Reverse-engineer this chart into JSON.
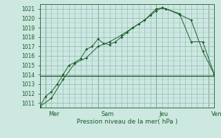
{
  "xlabel": "Pression niveau de la mer( hPa )",
  "bg_color": "#cce8e0",
  "grid_color": "#99bbbb",
  "line_color": "#1a5c2a",
  "ylim": [
    1010.5,
    1021.5
  ],
  "yticks": [
    1011,
    1012,
    1013,
    1014,
    1015,
    1016,
    1017,
    1018,
    1019,
    1020,
    1021
  ],
  "xlim": [
    0,
    9.0
  ],
  "xday_ticks": [
    0.3,
    3.0,
    6.0,
    8.7
  ],
  "xday_labels": [
    "Mer",
    "Sam",
    "Jeu",
    "Ven"
  ],
  "xvlines": [
    0.3,
    3.0,
    6.0,
    8.7
  ],
  "line1_x": [
    0.0,
    0.3,
    0.6,
    0.9,
    1.2,
    1.5,
    1.8,
    2.1,
    2.4,
    2.7,
    3.0,
    3.3,
    3.6,
    3.9,
    4.2,
    4.5,
    4.8,
    5.1,
    5.4,
    5.7,
    6.0,
    6.3,
    6.5,
    7.2,
    7.8,
    8.4,
    9.0
  ],
  "line1_y": [
    1010.6,
    1011.7,
    1012.2,
    1013.0,
    1014.0,
    1015.0,
    1015.3,
    1015.7,
    1016.7,
    1017.0,
    1017.8,
    1017.3,
    1017.2,
    1017.5,
    1018.0,
    1018.5,
    1019.0,
    1019.4,
    1019.8,
    1020.3,
    1020.8,
    1021.1,
    1021.0,
    1020.5,
    1017.5,
    1017.5,
    1014.0
  ],
  "line2_x": [
    0.0,
    0.6,
    1.2,
    1.8,
    2.4,
    3.0,
    3.6,
    4.2,
    4.8,
    5.4,
    6.0,
    6.3,
    6.5,
    7.2,
    7.8,
    8.4,
    9.0
  ],
  "line2_y": [
    1010.6,
    1011.5,
    1013.5,
    1015.2,
    1015.8,
    1017.0,
    1017.5,
    1018.2,
    1019.0,
    1019.8,
    1021.0,
    1021.1,
    1021.0,
    1020.4,
    1019.8,
    1016.5,
    1014.0
  ],
  "line3_x": [
    0.0,
    9.0
  ],
  "line3_y": [
    1013.9,
    1013.9
  ],
  "marker_size": 2.0
}
